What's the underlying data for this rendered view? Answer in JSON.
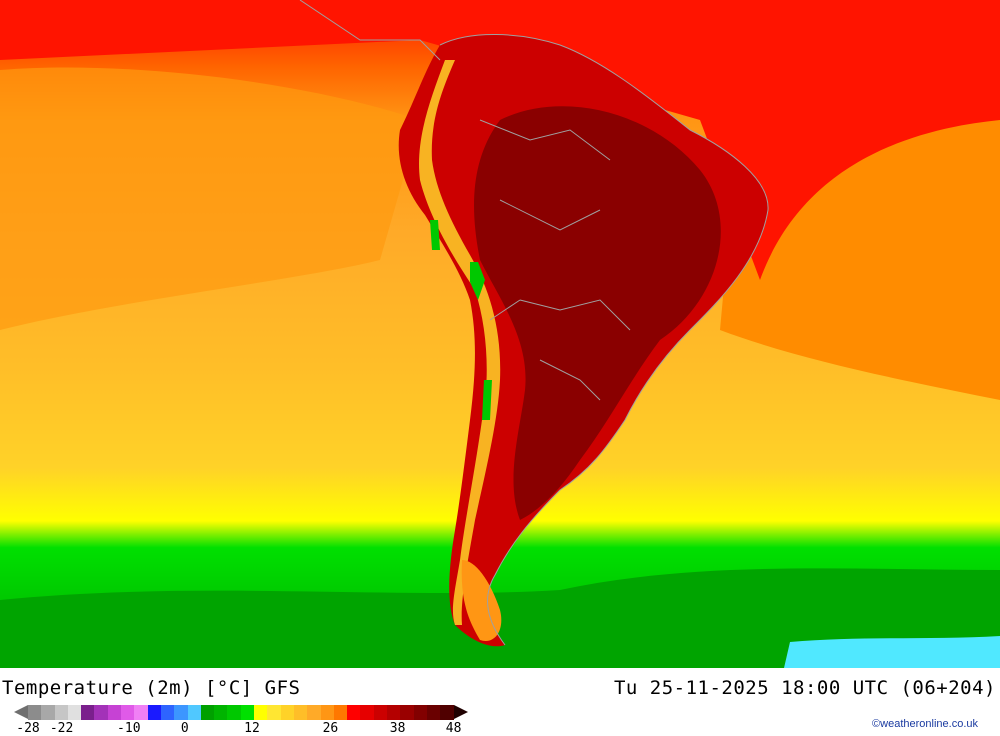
{
  "title_left": "Temperature (2m) [°C] GFS",
  "title_right": "Tu 25-11-2025 18:00 UTC (06+204)",
  "credit": "©weatheronline.co.uk",
  "legend": {
    "ticks": [
      {
        "label": "-28",
        "value": -28
      },
      {
        "label": "-22",
        "value": -22
      },
      {
        "label": "-10",
        "value": -10
      },
      {
        "label": "0",
        "value": 0
      },
      {
        "label": "12",
        "value": 12
      },
      {
        "label": "26",
        "value": 26
      },
      {
        "label": "38",
        "value": 38
      },
      {
        "label": "48",
        "value": 48
      }
    ],
    "colors": [
      "#8c8c8c",
      "#a8a8a8",
      "#c6c6c6",
      "#e0e0e0",
      "#7a1f8c",
      "#a332b8",
      "#c642d4",
      "#e05ae8",
      "#f080f5",
      "#1a1aff",
      "#2e64ff",
      "#3c96ff",
      "#50c8ff",
      "#00a000",
      "#00b400",
      "#00c800",
      "#00e000",
      "#ffff00",
      "#ffe632",
      "#ffd228",
      "#ffbe28",
      "#ffaa28",
      "#ff9614",
      "#ff7800",
      "#ff0000",
      "#e60000",
      "#cc0000",
      "#b40000",
      "#9a0000",
      "#820000",
      "#6a0000",
      "#500000"
    ]
  }
}
